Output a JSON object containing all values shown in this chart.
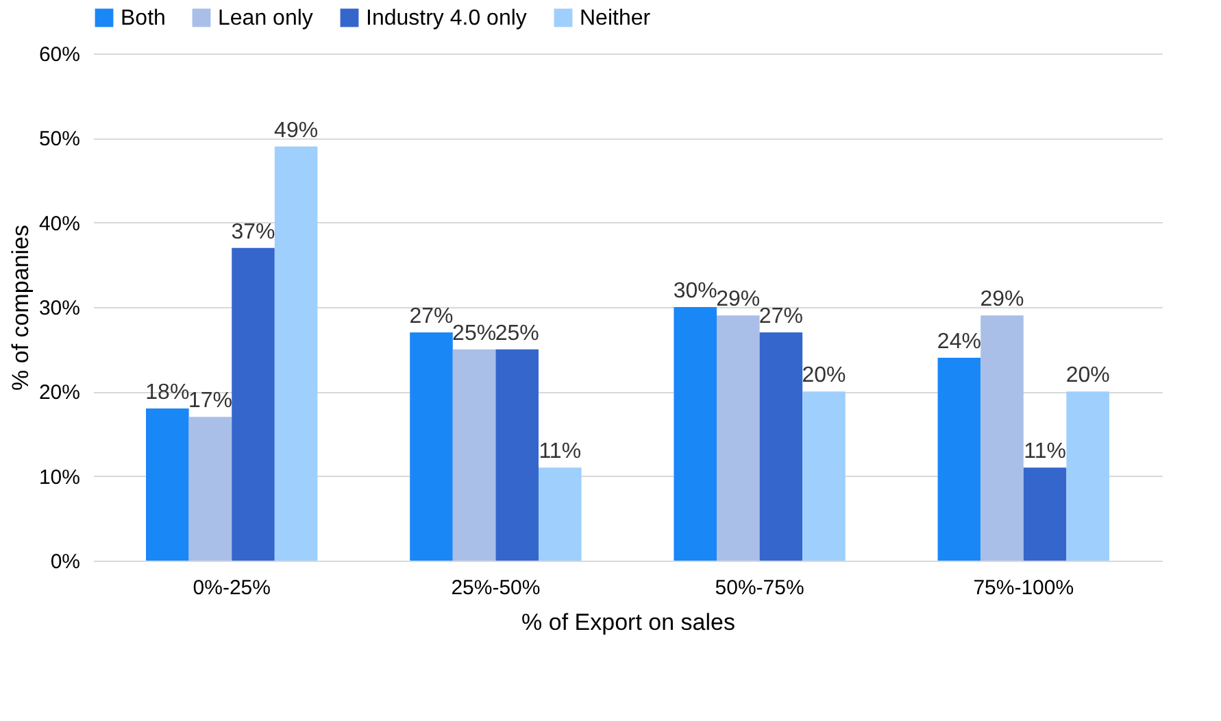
{
  "chart_data": {
    "type": "bar",
    "xlabel": "% of Export on sales",
    "ylabel": "% of companies",
    "categories": [
      "0%-25%",
      "25%-50%",
      "50%-75%",
      "75%-100%"
    ],
    "series": [
      {
        "name": "Both",
        "color": "#1a87f7",
        "values": [
          18,
          27,
          30,
          24
        ],
        "value_labels": [
          "18%",
          "27%",
          "30%",
          "24%"
        ]
      },
      {
        "name": "Lean only",
        "color": "#aabfe8",
        "values": [
          17,
          25,
          29,
          29
        ],
        "value_labels": [
          "17%",
          "25%",
          "29%",
          "29%"
        ]
      },
      {
        "name": "Industry 4.0 only",
        "color": "#3566cc",
        "values": [
          37,
          25,
          27,
          11
        ],
        "value_labels": [
          "37%",
          "25%",
          "27%",
          "11%"
        ]
      },
      {
        "name": "Neither",
        "color": "#9fcffc",
        "values": [
          49,
          11,
          20,
          20
        ],
        "value_labels": [
          "49%",
          "11%",
          "20%",
          "20%"
        ]
      }
    ],
    "ylim": [
      0,
      60
    ],
    "yticks": [
      {
        "value": 0,
        "label": "0%"
      },
      {
        "value": 10,
        "label": "10%"
      },
      {
        "value": 20,
        "label": "20%"
      },
      {
        "value": 30,
        "label": "30%"
      },
      {
        "value": 40,
        "label": "40%"
      },
      {
        "value": 50,
        "label": "50%"
      },
      {
        "value": 60,
        "label": "60%"
      }
    ],
    "grid": "y",
    "legend": "top"
  }
}
